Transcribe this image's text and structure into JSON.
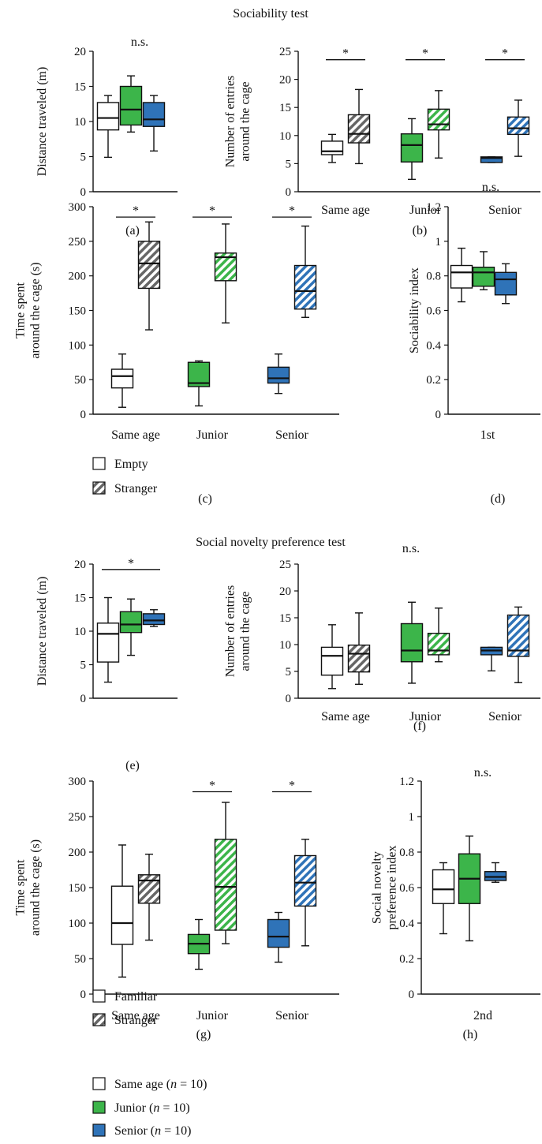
{
  "sections": {
    "sociability_title": "Sociability test",
    "novelty_title": "Social novelty preference test"
  },
  "legends": {
    "sociability": [
      "Empty",
      "Stranger"
    ],
    "novelty": [
      "Familiar",
      "Stranger"
    ],
    "groups": [
      {
        "label": "Same age",
        "n_text": "n",
        "eq": " = 10)"
      },
      {
        "label": "Junior",
        "n_text": "n",
        "eq": " = 10)"
      },
      {
        "label": "Senior",
        "n_text": "n",
        "eq": " = 10)"
      }
    ]
  },
  "colors": {
    "same_age": "#ffffff",
    "junior": "#3cb54a",
    "senior": "#2f73b8",
    "stranger_pattern_gray": "#666666",
    "axis": "#111111"
  },
  "chart_data": [
    {
      "id": "a",
      "panel_label": "(a)",
      "type": "box",
      "ylabel": "Distance traveled (m)",
      "ylim": [
        0,
        20
      ],
      "yticks": [
        0,
        5,
        10,
        15,
        20
      ],
      "categories": [],
      "sig_text": "n.s.",
      "boxes": [
        {
          "group": "same_age",
          "pattern": "solid",
          "min": 4.9,
          "q1": 8.8,
          "median": 10.5,
          "q3": 12.7,
          "max": 13.7
        },
        {
          "group": "junior",
          "pattern": "solid",
          "min": 8.5,
          "q1": 9.5,
          "median": 11.7,
          "q3": 15.0,
          "max": 16.5
        },
        {
          "group": "senior",
          "pattern": "solid",
          "min": 5.8,
          "q1": 9.3,
          "median": 10.3,
          "q3": 12.7,
          "max": 13.7
        }
      ],
      "significance": []
    },
    {
      "id": "b",
      "panel_label": "(b)",
      "type": "box",
      "ylabel": "Number of entries around the cage",
      "ylim": [
        0,
        25
      ],
      "yticks": [
        0,
        5,
        10,
        15,
        20,
        25
      ],
      "categories": [
        "Same age",
        "Junior",
        "Senior"
      ],
      "sig_text": "",
      "boxes": [
        {
          "group": "same_age",
          "pattern": "solid",
          "min": 5.2,
          "q1": 6.6,
          "median": 7.2,
          "q3": 9.0,
          "max": 10.2
        },
        {
          "group": "same_age",
          "pattern": "hatch",
          "min": 5.0,
          "q1": 8.7,
          "median": 10.3,
          "q3": 13.7,
          "max": 18.2
        },
        {
          "group": "junior",
          "pattern": "solid",
          "min": 2.2,
          "q1": 5.3,
          "median": 8.3,
          "q3": 10.3,
          "max": 13.0
        },
        {
          "group": "junior",
          "pattern": "hatch",
          "min": 6.0,
          "q1": 11.0,
          "median": 12.0,
          "q3": 14.7,
          "max": 18.0
        },
        {
          "group": "senior",
          "pattern": "solid",
          "min": 5.2,
          "q1": 5.2,
          "median": 6.0,
          "q3": 6.2,
          "max": 6.2
        },
        {
          "group": "senior",
          "pattern": "hatch",
          "min": 6.3,
          "q1": 10.2,
          "median": 11.3,
          "q3": 13.3,
          "max": 16.3
        }
      ],
      "significance": [
        {
          "from": 0,
          "to": 1,
          "y": 23.5,
          "text": "*"
        },
        {
          "from": 2,
          "to": 3,
          "y": 23.5,
          "text": "*"
        },
        {
          "from": 4,
          "to": 5,
          "y": 23.5,
          "text": "*"
        }
      ]
    },
    {
      "id": "c",
      "panel_label": "(c)",
      "type": "box",
      "ylabel": "Time spent around the cage (s)",
      "ylim": [
        0,
        300
      ],
      "yticks": [
        0,
        50,
        100,
        150,
        200,
        250,
        300
      ],
      "categories": [
        "Same age",
        "Junior",
        "Senior"
      ],
      "sig_text": "",
      "boxes": [
        {
          "group": "same_age",
          "pattern": "solid",
          "min": 10,
          "q1": 38,
          "median": 55,
          "q3": 65,
          "max": 87
        },
        {
          "group": "same_age",
          "pattern": "hatch",
          "min": 122,
          "q1": 182,
          "median": 218,
          "q3": 250,
          "max": 278
        },
        {
          "group": "junior",
          "pattern": "solid",
          "min": 12,
          "q1": 40,
          "median": 45,
          "q3": 75,
          "max": 77
        },
        {
          "group": "junior",
          "pattern": "hatch",
          "min": 132,
          "q1": 193,
          "median": 227,
          "q3": 233,
          "max": 275
        },
        {
          "group": "senior",
          "pattern": "solid",
          "min": 30,
          "q1": 45,
          "median": 52,
          "q3": 68,
          "max": 87
        },
        {
          "group": "senior",
          "pattern": "hatch",
          "min": 140,
          "q1": 152,
          "median": 178,
          "q3": 215,
          "max": 272
        }
      ],
      "significance": [
        {
          "from": 0,
          "to": 1,
          "y": 285,
          "text": "*"
        },
        {
          "from": 2,
          "to": 3,
          "y": 285,
          "text": "*"
        },
        {
          "from": 4,
          "to": 5,
          "y": 285,
          "text": "*"
        }
      ]
    },
    {
      "id": "d",
      "panel_label": "(d)",
      "type": "box",
      "ylabel": "Sociability index",
      "ylim": [
        0,
        1.2
      ],
      "yticks": [
        0,
        0.2,
        0.4,
        0.6,
        0.8,
        1,
        1.2
      ],
      "categories": [
        "1st"
      ],
      "sig_text": "n.s.",
      "boxes": [
        {
          "group": "same_age",
          "pattern": "solid",
          "min": 0.65,
          "q1": 0.73,
          "median": 0.82,
          "q3": 0.86,
          "max": 0.96
        },
        {
          "group": "junior",
          "pattern": "solid",
          "min": 0.72,
          "q1": 0.74,
          "median": 0.82,
          "q3": 0.85,
          "max": 0.94
        },
        {
          "group": "senior",
          "pattern": "solid",
          "min": 0.64,
          "q1": 0.69,
          "median": 0.78,
          "q3": 0.82,
          "max": 0.87
        }
      ],
      "significance": []
    },
    {
      "id": "e",
      "panel_label": "(e)",
      "type": "box",
      "ylabel": "Distance traveled (m)",
      "ylim": [
        0,
        20
      ],
      "yticks": [
        0,
        5,
        10,
        15,
        20
      ],
      "categories": [],
      "sig_text": "",
      "boxes": [
        {
          "group": "same_age",
          "pattern": "solid",
          "min": 2.4,
          "q1": 5.4,
          "median": 9.6,
          "q3": 11.2,
          "max": 15.0
        },
        {
          "group": "junior",
          "pattern": "solid",
          "min": 6.4,
          "q1": 9.8,
          "median": 11.0,
          "q3": 12.9,
          "max": 14.8
        },
        {
          "group": "senior",
          "pattern": "solid",
          "min": 10.7,
          "q1": 11.0,
          "median": 11.6,
          "q3": 12.6,
          "max": 13.2
        }
      ],
      "significance": [
        {
          "from": 0,
          "to": 2,
          "y": 19.2,
          "text": "*"
        }
      ]
    },
    {
      "id": "f",
      "panel_label": "(f)",
      "type": "box",
      "ylabel": "Number of entries around the cage",
      "ylim": [
        0,
        25
      ],
      "yticks": [
        0,
        5,
        10,
        15,
        20,
        25
      ],
      "categories": [
        "Same age",
        "Junior",
        "Senior"
      ],
      "sig_text": "n.s.",
      "boxes": [
        {
          "group": "same_age",
          "pattern": "solid",
          "min": 1.8,
          "q1": 4.3,
          "median": 7.9,
          "q3": 9.5,
          "max": 13.7
        },
        {
          "group": "same_age",
          "pattern": "hatch",
          "min": 2.6,
          "q1": 4.9,
          "median": 8.3,
          "q3": 9.9,
          "max": 15.9
        },
        {
          "group": "junior",
          "pattern": "solid",
          "min": 2.8,
          "q1": 6.8,
          "median": 8.9,
          "q3": 13.9,
          "max": 17.9
        },
        {
          "group": "junior",
          "pattern": "hatch",
          "min": 6.8,
          "q1": 8.1,
          "median": 8.9,
          "q3": 12.1,
          "max": 16.8
        },
        {
          "group": "senior",
          "pattern": "solid",
          "min": 5.1,
          "q1": 8.1,
          "median": 8.9,
          "q3": 9.5,
          "max": 9.5
        },
        {
          "group": "senior",
          "pattern": "hatch",
          "min": 2.9,
          "q1": 7.8,
          "median": 8.9,
          "q3": 15.5,
          "max": 17.0
        }
      ],
      "significance": []
    },
    {
      "id": "g",
      "panel_label": "(g)",
      "type": "box",
      "ylabel": "Time spent around the cage (s)",
      "ylim": [
        0,
        300
      ],
      "yticks": [
        0,
        50,
        100,
        150,
        200,
        250,
        300
      ],
      "categories": [
        "Same age",
        "Junior",
        "Senior"
      ],
      "sig_text": "",
      "boxes": [
        {
          "group": "same_age",
          "pattern": "solid",
          "min": 24,
          "q1": 70,
          "median": 100,
          "q3": 152,
          "max": 210
        },
        {
          "group": "same_age",
          "pattern": "hatch",
          "min": 76,
          "q1": 128,
          "median": 160,
          "q3": 168,
          "max": 197
        },
        {
          "group": "junior",
          "pattern": "solid",
          "min": 35,
          "q1": 57,
          "median": 71,
          "q3": 84,
          "max": 105
        },
        {
          "group": "junior",
          "pattern": "hatch",
          "min": 71,
          "q1": 90,
          "median": 151,
          "q3": 218,
          "max": 270
        },
        {
          "group": "senior",
          "pattern": "solid",
          "min": 45,
          "q1": 66,
          "median": 81,
          "q3": 105,
          "max": 115
        },
        {
          "group": "senior",
          "pattern": "hatch",
          "min": 68,
          "q1": 124,
          "median": 157,
          "q3": 195,
          "max": 218
        }
      ],
      "significance": [
        {
          "from": 2,
          "to": 3,
          "y": 285,
          "text": "*"
        },
        {
          "from": 4,
          "to": 5,
          "y": 285,
          "text": "*"
        }
      ]
    },
    {
      "id": "h",
      "panel_label": "(h)",
      "type": "box",
      "ylabel": "Social novelty preference index",
      "ylim": [
        0,
        1.2
      ],
      "yticks": [
        0,
        0.2,
        0.4,
        0.6,
        0.8,
        1,
        1.2
      ],
      "categories": [
        "2nd"
      ],
      "sig_text": "n.s.",
      "boxes": [
        {
          "group": "same_age",
          "pattern": "solid",
          "min": 0.34,
          "q1": 0.51,
          "median": 0.59,
          "q3": 0.7,
          "max": 0.74
        },
        {
          "group": "junior",
          "pattern": "solid",
          "min": 0.3,
          "q1": 0.51,
          "median": 0.65,
          "q3": 0.79,
          "max": 0.89
        },
        {
          "group": "senior",
          "pattern": "solid",
          "min": 0.63,
          "q1": 0.64,
          "median": 0.66,
          "q3": 0.69,
          "max": 0.74
        }
      ],
      "significance": []
    }
  ]
}
